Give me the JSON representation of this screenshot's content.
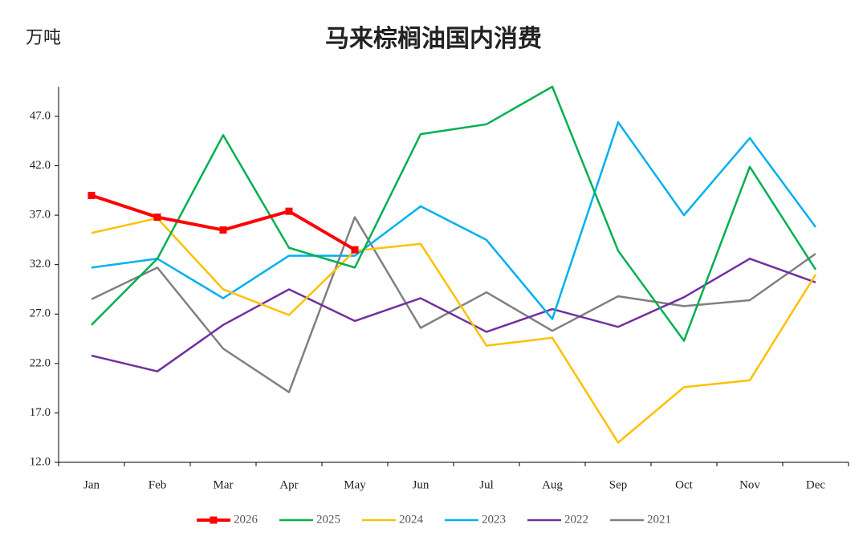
{
  "chart_data": {
    "type": "line",
    "title": "马来棕榈油国内消费",
    "y_label": "万吨",
    "categories": [
      "Jan",
      "Feb",
      "Mar",
      "Apr",
      "May",
      "Jun",
      "Jul",
      "Aug",
      "Sep",
      "Oct",
      "Nov",
      "Dec"
    ],
    "ylim": [
      12,
      50
    ],
    "yticks": [
      {
        "value": 12,
        "label": "12.0"
      },
      {
        "value": 17,
        "label": "17.0"
      },
      {
        "value": 22,
        "label": "22.0"
      },
      {
        "value": 27,
        "label": "27.0"
      },
      {
        "value": 32,
        "label": "32.0"
      },
      {
        "value": 37,
        "label": "37.0"
      },
      {
        "value": 42,
        "label": "42.0"
      },
      {
        "value": 47,
        "label": "47.0"
      }
    ],
    "legend": "bottom",
    "series": [
      {
        "name": "2026",
        "color": "#ff0000",
        "values": [
          39.0,
          36.8,
          35.5,
          37.4,
          33.5,
          null,
          null,
          null,
          null,
          null,
          null,
          null
        ]
      },
      {
        "name": "2025",
        "color": "#00b050",
        "values": [
          25.9,
          32.6,
          45.1,
          33.7,
          31.7,
          45.2,
          46.2,
          50.0,
          33.4,
          24.3,
          41.9,
          31.5
        ]
      },
      {
        "name": "2024",
        "color": "#ffc000",
        "values": [
          35.2,
          36.7,
          29.5,
          26.9,
          33.4,
          34.1,
          23.8,
          24.6,
          14.0,
          19.6,
          20.3,
          31.0
        ]
      },
      {
        "name": "2023",
        "color": "#00b0f0",
        "values": [
          31.7,
          32.6,
          28.6,
          32.9,
          32.9,
          37.9,
          34.5,
          26.5,
          46.4,
          37.0,
          44.8,
          35.8
        ]
      },
      {
        "name": "2022",
        "color": "#7030a0",
        "values": [
          22.8,
          21.2,
          25.9,
          29.5,
          26.3,
          28.6,
          25.2,
          27.5,
          25.7,
          28.7,
          32.6,
          30.2
        ]
      },
      {
        "name": "2021",
        "color": "#808080",
        "values": [
          28.5,
          31.7,
          23.5,
          19.1,
          36.8,
          25.6,
          29.2,
          25.3,
          28.8,
          27.8,
          28.4,
          33.1
        ]
      }
    ]
  }
}
